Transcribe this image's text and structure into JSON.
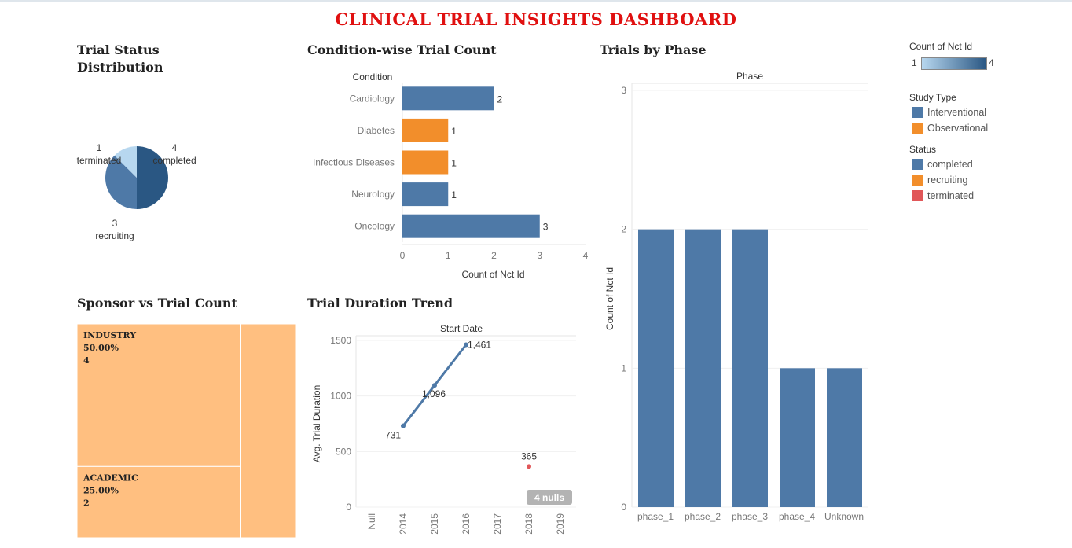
{
  "dashboard": {
    "title": "CLINICAL TRIAL INSIGHTS DASHBOARD"
  },
  "colors": {
    "blue": "#4e79a7",
    "orange": "#f28e2b",
    "red": "#e15759",
    "light_blue": "#b7d7ef",
    "dark_blue": "#2a5783",
    "treemap": "#ffbf80"
  },
  "sections": {
    "status": "Trial Status Distribution",
    "condition": "Condition-wise Trial Count",
    "phase": "Trials by Phase",
    "sponsor": "Sponsor vs Trial Count",
    "duration": "Trial Duration Trend"
  },
  "legend": {
    "color_title": "Count of Nct Id",
    "color_min": "1",
    "color_max": "4",
    "study_type_title": "Study Type",
    "study_types": [
      {
        "label": "Interventional",
        "color": "#4e79a7"
      },
      {
        "label": "Observational",
        "color": "#f28e2b"
      }
    ],
    "status_title": "Status",
    "statuses": [
      {
        "label": "completed",
        "color": "#4e79a7"
      },
      {
        "label": "recruiting",
        "color": "#f28e2b"
      },
      {
        "label": "terminated",
        "color": "#e15759"
      }
    ]
  },
  "chart_data": [
    {
      "type": "pie",
      "title": "Trial Status Distribution",
      "slices": [
        {
          "label": "completed",
          "value": 4,
          "color": "#2a5783"
        },
        {
          "label": "recruiting",
          "value": 3,
          "color": "#4e79a7"
        },
        {
          "label": "terminated",
          "value": 1,
          "color": "#b7d7ef"
        }
      ]
    },
    {
      "type": "bar",
      "orientation": "horizontal",
      "title": "Condition-wise Trial Count",
      "ylabel": "Condition",
      "xlabel": "Count of Nct Id",
      "categories": [
        "Cardiology",
        "Diabetes",
        "Infectious Diseases",
        "Neurology",
        "Oncology"
      ],
      "values": [
        2,
        1,
        1,
        1,
        3
      ],
      "colors": [
        "#4e79a7",
        "#f28e2b",
        "#f28e2b",
        "#4e79a7",
        "#4e79a7"
      ],
      "xticks": [
        "0",
        "1",
        "2",
        "3",
        "4"
      ],
      "xlim": [
        0,
        4
      ]
    },
    {
      "type": "bar",
      "title": "Trials by Phase",
      "header": "Phase",
      "ylabel": "Count of Nct Id",
      "categories": [
        "phase_1",
        "phase_2",
        "phase_3",
        "phase_4",
        "Unknown"
      ],
      "values": [
        2,
        2,
        2,
        1,
        1
      ],
      "yticks": [
        "0",
        "1",
        "2",
        "3"
      ],
      "ylim": [
        0,
        3
      ]
    },
    {
      "type": "treemap",
      "title": "Sponsor vs Trial Count",
      "items": [
        {
          "name": "INDUSTRY",
          "pct": "50.00%",
          "count": "4",
          "value": 4
        },
        {
          "name": "ACADEMIC",
          "pct": "25.00%",
          "count": "2",
          "value": 2
        },
        {
          "name": "",
          "pct": "",
          "count": "",
          "value": 2
        }
      ]
    },
    {
      "type": "line",
      "title": "Trial Duration Trend",
      "header": "Start Date",
      "ylabel": "Avg. Trial Duration",
      "xcategories": [
        "Null",
        "2014",
        "2015",
        "2016",
        "2017",
        "2018",
        "2019"
      ],
      "yticks": [
        "0",
        "500",
        "1000",
        "1500"
      ],
      "ylim": [
        0,
        1500
      ],
      "points": [
        {
          "x": "2014",
          "y": 731,
          "label": "731"
        },
        {
          "x": "2015",
          "y": 1096,
          "label": "1,096"
        },
        {
          "x": "2016",
          "y": 1461,
          "label": "1,461"
        }
      ],
      "isolated": {
        "x": "2018",
        "y": 365,
        "label": "365"
      },
      "nulls_badge": "4 nulls"
    }
  ]
}
